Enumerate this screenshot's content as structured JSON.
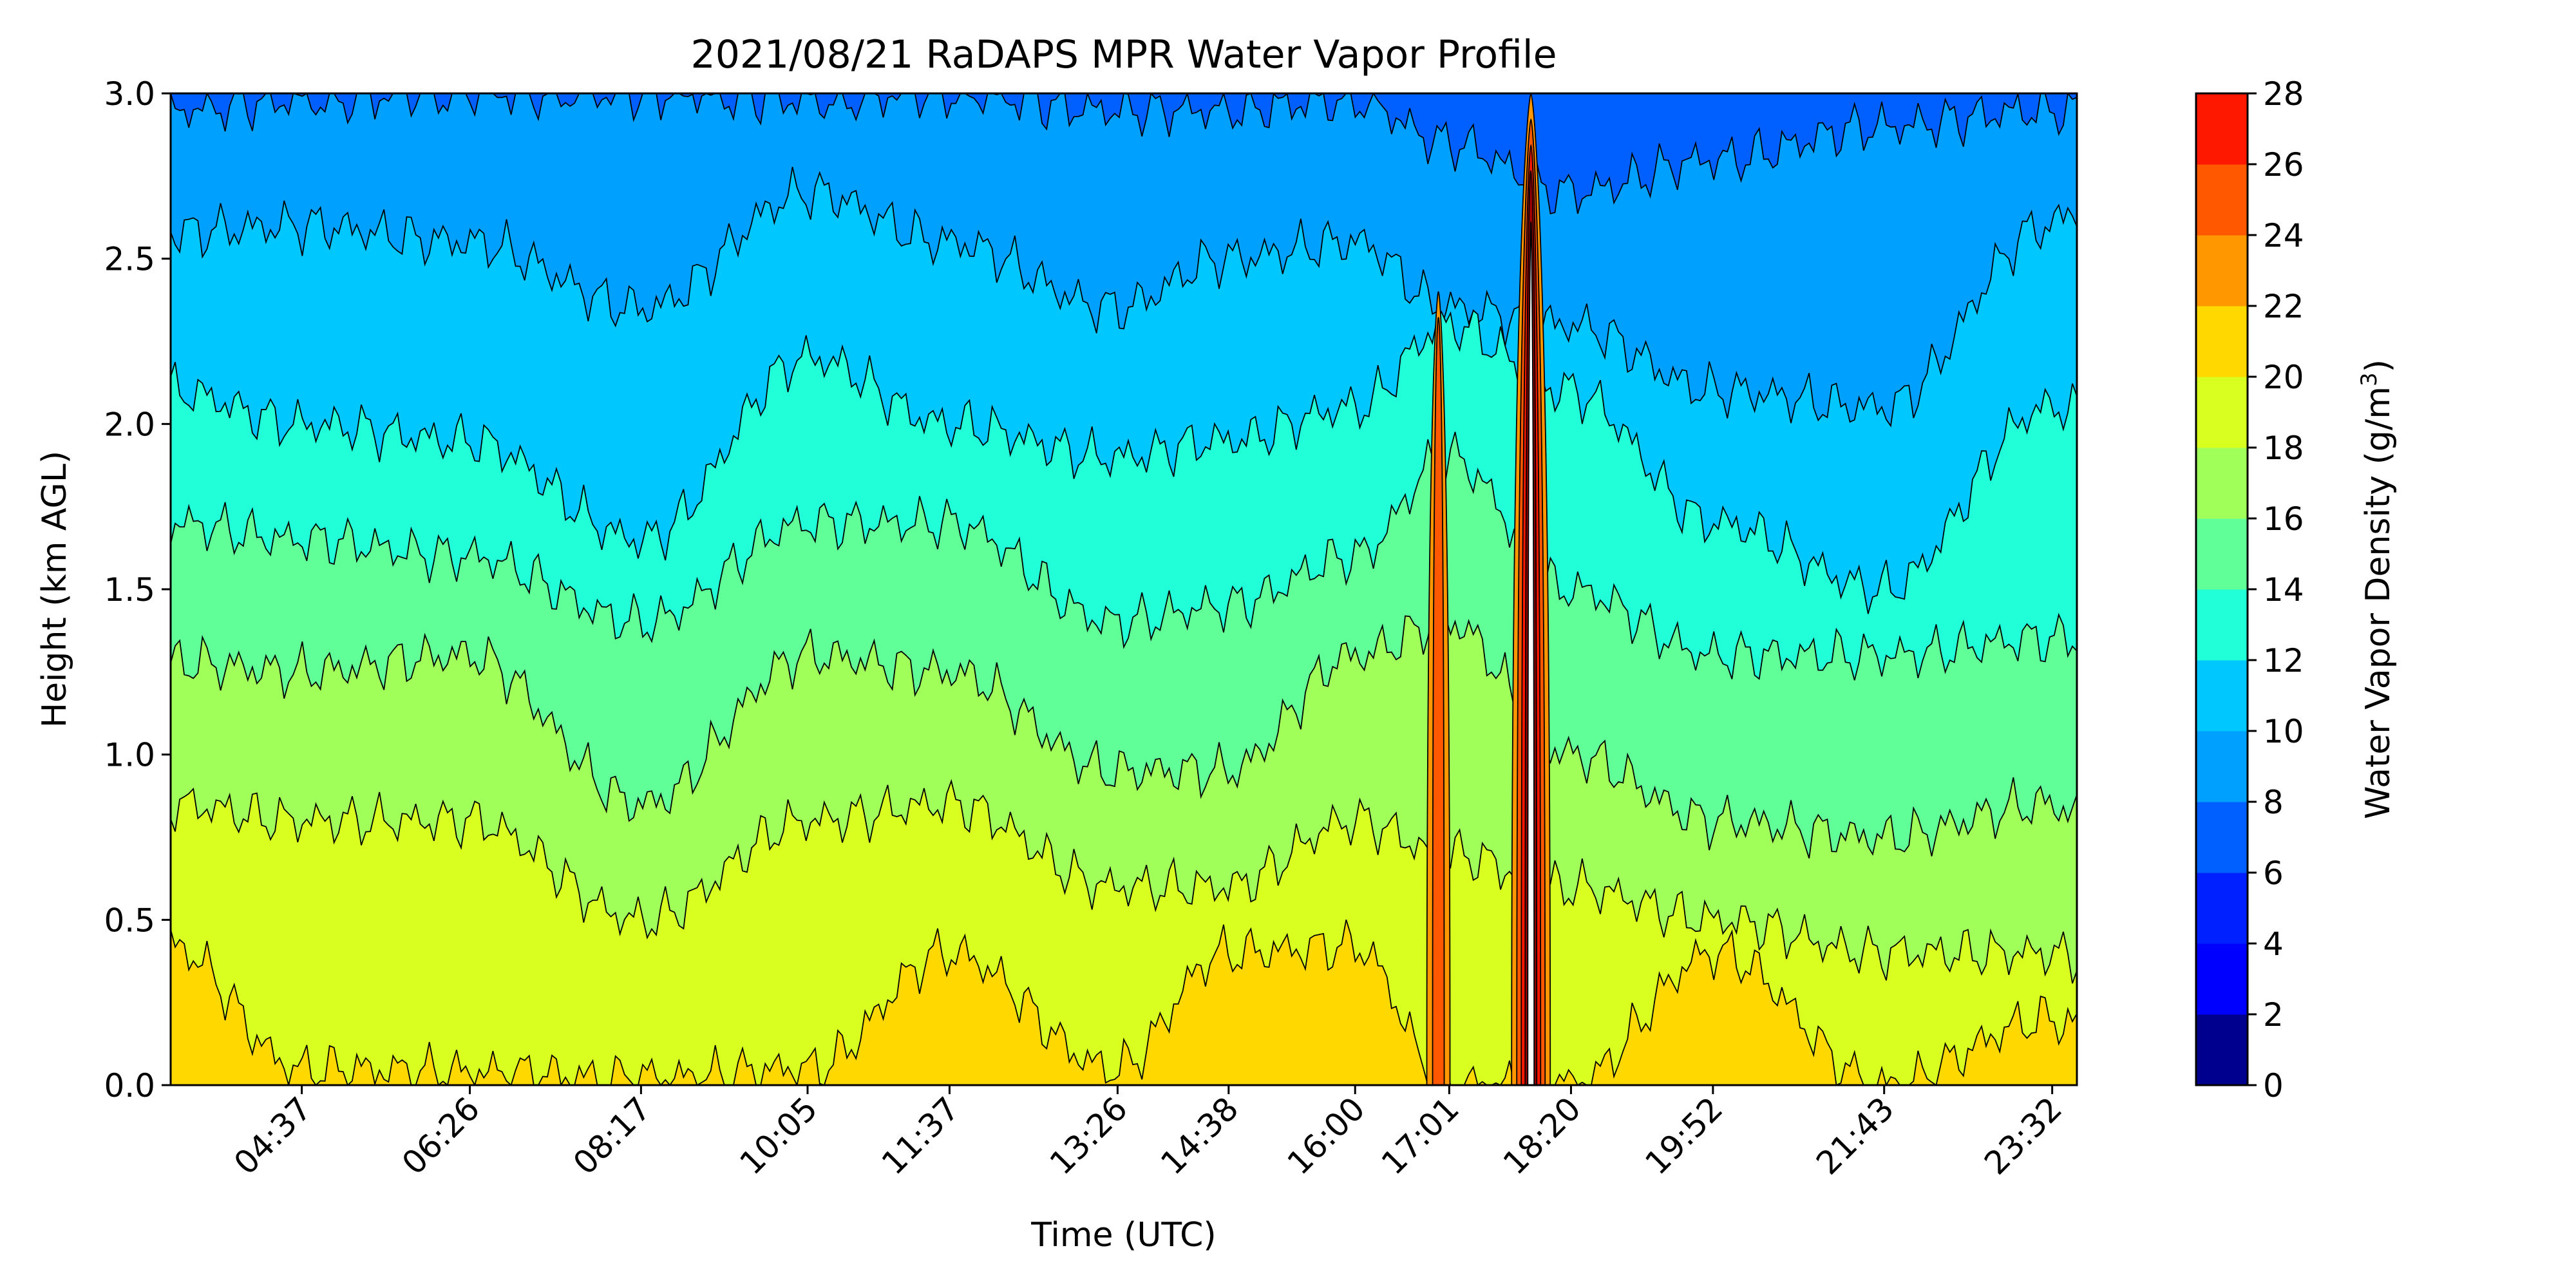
{
  "chart_data": {
    "type": "contourf",
    "title": "2021/08/21 RaDAPS MPR Water Vapor Profile",
    "xlabel": "Time (UTC)",
    "ylabel": "Height (km AGL)",
    "ylim": [
      0,
      3
    ],
    "y_ticks": [
      "0.0",
      "0.5",
      "1.0",
      "1.5",
      "2.0",
      "2.5",
      "3.0"
    ],
    "x_range_hours": [
      3.2,
      23.8
    ],
    "x_ticks": [
      {
        "label": "04:37",
        "t": 4.617
      },
      {
        "label": "06:26",
        "t": 6.433
      },
      {
        "label": "08:17",
        "t": 8.283
      },
      {
        "label": "10:05",
        "t": 10.083
      },
      {
        "label": "11:37",
        "t": 11.617
      },
      {
        "label": "13:26",
        "t": 13.433
      },
      {
        "label": "14:38",
        "t": 14.633
      },
      {
        "label": "16:00",
        "t": 16.0
      },
      {
        "label": "17:01",
        "t": 17.017
      },
      {
        "label": "18:20",
        "t": 18.333
      },
      {
        "label": "19:52",
        "t": 19.867
      },
      {
        "label": "21:43",
        "t": 21.717
      },
      {
        "label": "23:32",
        "t": 23.533
      }
    ],
    "colorbar": {
      "label": "Water Vapor Density (g/m",
      "label_sup": "3",
      "label_close": ")",
      "levels": [
        0,
        2,
        4,
        6,
        8,
        10,
        12,
        14,
        16,
        18,
        20,
        22,
        24,
        26,
        28
      ],
      "tick_labels": [
        "0",
        "2",
        "4",
        "6",
        "8",
        "10",
        "12",
        "14",
        "16",
        "18",
        "20",
        "22",
        "24",
        "26",
        "28"
      ],
      "colors": [
        "#00008f",
        "#0000ff",
        "#0020ff",
        "#0060ff",
        "#00a0ff",
        "#00c8ff",
        "#20ffd8",
        "#60ff98",
        "#a0ff58",
        "#d8ff20",
        "#ffd800",
        "#ff9800",
        "#ff5800",
        "#ff1800",
        "#a00000"
      ]
    },
    "contour_boundaries_km": {
      "t": [
        3.2,
        4.6,
        6.4,
        8.3,
        10.1,
        11.6,
        13.4,
        14.6,
        16.0,
        17.0,
        18.3,
        19.9,
        21.7,
        23.5,
        23.8
      ],
      "20": [
        0.42,
        0.05,
        0.04,
        0.02,
        0.05,
        0.4,
        0.05,
        0.4,
        0.42,
        0.0,
        0.0,
        0.4,
        0.0,
        0.2,
        0.18
      ],
      "18": [
        0.85,
        0.8,
        0.8,
        0.5,
        0.8,
        0.85,
        0.6,
        0.6,
        0.8,
        0.7,
        0.6,
        0.5,
        0.4,
        0.4,
        0.38
      ],
      "16": [
        1.28,
        1.25,
        1.3,
        0.85,
        1.3,
        1.25,
        0.95,
        0.95,
        1.3,
        1.4,
        1.0,
        0.8,
        0.75,
        0.85,
        0.82
      ],
      "14": [
        1.7,
        1.65,
        1.6,
        1.4,
        1.7,
        1.7,
        1.4,
        1.45,
        1.6,
        1.9,
        1.5,
        1.3,
        1.3,
        1.35,
        1.35
      ],
      "12": [
        2.1,
        2.0,
        1.95,
        1.65,
        2.2,
        2.0,
        1.9,
        1.95,
        2.05,
        2.3,
        2.1,
        1.7,
        1.5,
        2.05,
        2.05
      ],
      "10": [
        2.58,
        2.6,
        2.55,
        2.35,
        2.7,
        2.55,
        2.35,
        2.5,
        2.55,
        2.35,
        2.3,
        2.1,
        2.05,
        2.6,
        2.65
      ],
      "8": [
        2.95,
        2.98,
        3.0,
        3.0,
        2.98,
        3.0,
        2.95,
        2.95,
        2.98,
        2.85,
        2.7,
        2.8,
        2.9,
        2.95,
        2.95
      ]
    },
    "high_value_spikes": [
      {
        "t": 16.9,
        "peak_km": 2.4,
        "max_class": 24
      },
      {
        "t": 17.9,
        "peak_km": 3.0,
        "max_class": 28
      }
    ]
  }
}
